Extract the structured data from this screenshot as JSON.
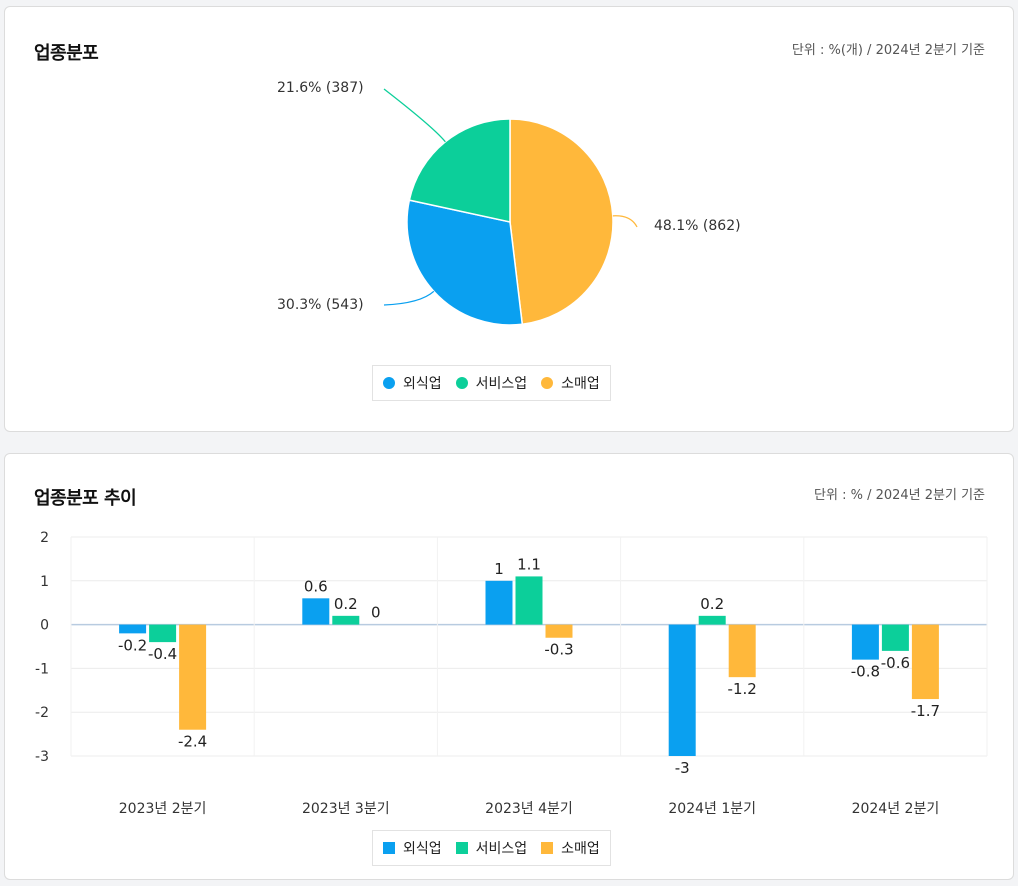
{
  "pie_card": {
    "title": "업종분포",
    "unit": "단위 : %(개) / 2024년 2분기 기준",
    "legend": [
      {
        "label": "외식업",
        "color": "#0aa0f0"
      },
      {
        "label": "서비스업",
        "color": "#0ccf9a"
      },
      {
        "label": "소매업",
        "color": "#ffb83b"
      }
    ]
  },
  "bar_card": {
    "title": "업종분포 추이",
    "unit": "단위 : % / 2024년 2분기 기준",
    "legend": [
      {
        "label": "외식업",
        "color": "#0aa0f0"
      },
      {
        "label": "서비스업",
        "color": "#0ccf9a"
      },
      {
        "label": "소매업",
        "color": "#ffb83b"
      }
    ]
  },
  "chart_data": [
    {
      "type": "pie",
      "title": "업종분포",
      "slices": [
        {
          "name": "외식업",
          "value": 30.3,
          "count": 543,
          "label": "30.3% (543)",
          "color": "#0aa0f0"
        },
        {
          "name": "서비스업",
          "value": 21.6,
          "count": 387,
          "label": "21.6% (387)",
          "color": "#0ccf9a"
        },
        {
          "name": "소매업",
          "value": 48.1,
          "count": 862,
          "label": "48.1% (862)",
          "color": "#ffb83b"
        }
      ],
      "legend_position": "bottom"
    },
    {
      "type": "bar",
      "title": "업종분포 추이",
      "categories": [
        "2023년 2분기",
        "2023년 3분기",
        "2023년 4분기",
        "2024년 1분기",
        "2024년 2분기"
      ],
      "series": [
        {
          "name": "외식업",
          "color": "#0aa0f0",
          "values": [
            -0.2,
            0.6,
            1,
            -3,
            -0.8
          ]
        },
        {
          "name": "서비스업",
          "color": "#0ccf9a",
          "values": [
            -0.4,
            0.2,
            1.1,
            0.2,
            -0.6
          ]
        },
        {
          "name": "소매업",
          "color": "#ffb83b",
          "values": [
            -2.4,
            0,
            -0.3,
            -1.2,
            -1.7
          ]
        }
      ],
      "yticks": [
        2,
        1,
        0,
        -1,
        -2,
        -3
      ],
      "ylim": [
        -3,
        2
      ],
      "grid": true,
      "legend_position": "bottom"
    }
  ]
}
